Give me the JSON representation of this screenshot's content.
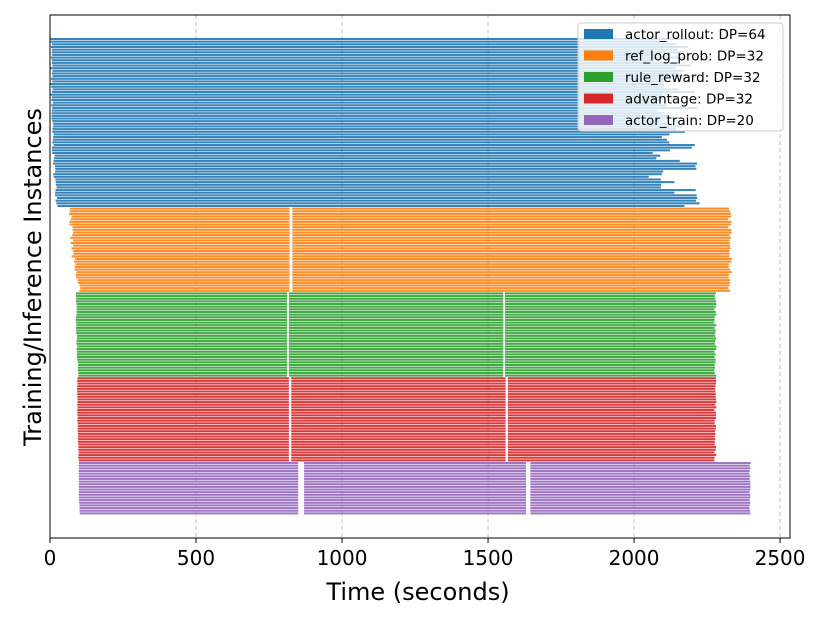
{
  "chart_data": {
    "type": "timeline",
    "title": "",
    "xlabel": "Time (seconds)",
    "ylabel": "Training/Inference Instances",
    "xlim": [
      0,
      2534
    ],
    "xticks": [
      0,
      500,
      1000,
      1500,
      2000,
      2500
    ],
    "xtick_labels": [
      "0",
      "500",
      "1000",
      "1500",
      "2000",
      "2500"
    ],
    "grid": "x-dashed",
    "legend_position": "top-right",
    "series": [
      {
        "name": "actor_rollout",
        "label": "actor_rollout: DP=64",
        "dp": 64,
        "color": "#1f77b4",
        "start_range": [
          0,
          30
        ],
        "end_range": [
          2050,
          2230
        ],
        "gaps": []
      },
      {
        "name": "ref_log_prob",
        "label": "ref_log_prob: DP=32",
        "dp": 32,
        "color": "#ff7f0e",
        "start_range": [
          65,
          110
        ],
        "end_range": [
          2322,
          2335
        ],
        "gaps": [
          [
            820,
            830
          ]
        ]
      },
      {
        "name": "rule_reward",
        "label": "rule_reward: DP=32",
        "dp": 32,
        "color": "#2ca02c",
        "start_range": [
          88,
          100
        ],
        "end_range": [
          2275,
          2282
        ],
        "gaps": [
          [
            812,
            818
          ],
          [
            1552,
            1558
          ]
        ]
      },
      {
        "name": "advantage",
        "label": "advantage: DP=32",
        "dp": 32,
        "color": "#d62728",
        "start_range": [
          92,
          100
        ],
        "end_range": [
          2275,
          2282
        ],
        "gaps": [
          [
            818,
            826
          ],
          [
            1560,
            1568
          ]
        ]
      },
      {
        "name": "actor_train",
        "label": "actor_train: DP=20",
        "dp": 20,
        "color": "#9467bd",
        "start_range": [
          98,
          102
        ],
        "end_range": [
          2395,
          2400
        ],
        "gaps": [
          [
            850,
            870
          ],
          [
            1630,
            1645
          ]
        ]
      }
    ]
  }
}
